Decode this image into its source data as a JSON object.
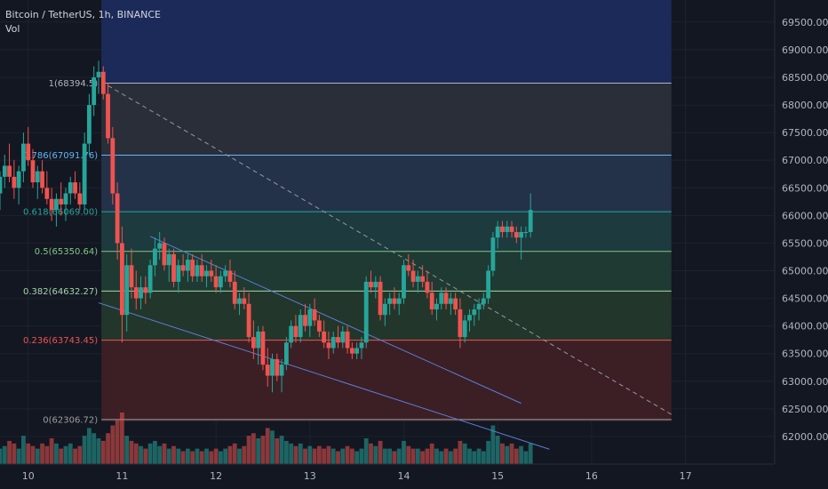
{
  "header": {
    "symbol": "Bitcoin / TetherUS, 1h, BINANCE",
    "indicator": "Vol"
  },
  "chart_data": {
    "type": "candlestick",
    "symbol": "Bitcoin / TetherUS",
    "interval": "1h",
    "exchange": "BINANCE",
    "price_axis": {
      "ylim": [
        61500,
        69900
      ],
      "ticks": [
        "69500.00",
        "69000.00",
        "68500.00",
        "68000.00",
        "67500.00",
        "67000.00",
        "66500.00",
        "66000.00",
        "65500.00",
        "65000.00",
        "64500.00",
        "64000.00",
        "63500.00",
        "63000.00",
        "62500.00",
        "62000.00"
      ]
    },
    "time_axis": {
      "xlim": [
        9.7,
        17.95
      ],
      "ticks": [
        {
          "x": 10,
          "label": "10"
        },
        {
          "x": 11,
          "label": "11"
        },
        {
          "x": 12,
          "label": "12"
        },
        {
          "x": 13,
          "label": "13"
        },
        {
          "x": 14,
          "label": "14"
        },
        {
          "x": 15,
          "label": "15"
        },
        {
          "x": 16,
          "label": "16"
        },
        {
          "x": 17,
          "label": "17"
        }
      ]
    },
    "fib_retracement": {
      "x_start": 10.78,
      "x_end": 16.85,
      "levels": [
        {
          "ratio": "1",
          "price": 68394.5,
          "label": "1(68394.5)",
          "color": "#b2b5be",
          "fill": "#2a2e39"
        },
        {
          "ratio": "0.786",
          "price": 67091.76,
          "label": "0.786(67091.76)",
          "color": "#64b5f6",
          "fill": "#243249"
        },
        {
          "ratio": "0.618",
          "price": 66069.0,
          "label": "0.618(66069.00)",
          "color": "#26a69a",
          "fill": "#1d3a3f"
        },
        {
          "ratio": "0.5",
          "price": 65350.64,
          "label": "0.5(65350.64)",
          "color": "#81c784",
          "fill": "#1f3a33"
        },
        {
          "ratio": "0.382",
          "price": 64632.27,
          "label": "0.382(64632.27)",
          "color": "#a5d6a7",
          "fill": "#23362b"
        },
        {
          "ratio": "0.236",
          "price": 63743.45,
          "label": "0.236(63743.45)",
          "color": "#ef5350",
          "fill": "#3b1f25"
        },
        {
          "ratio": "0",
          "price": 62306.72,
          "label": "0(62306.72)",
          "color": "#9e9e9e",
          "fill": "#3a2225"
        }
      ],
      "extended_top": {
        "price": 69900,
        "fill": "#1c2a5a"
      }
    },
    "trendlines": [
      {
        "style": "dashed",
        "color": "#9598a1",
        "points": [
          [
            10.85,
            68350
          ],
          [
            16.85,
            62400
          ]
        ]
      },
      {
        "style": "solid",
        "color": "#5b7fd6",
        "points": [
          [
            11.3,
            65620
          ],
          [
            15.25,
            62600
          ]
        ]
      },
      {
        "style": "solid",
        "color": "#5b7fd6",
        "points": [
          [
            10.75,
            64420
          ],
          [
            15.55,
            61770
          ]
        ]
      }
    ],
    "candles": [
      [
        9.7,
        66400,
        66800,
        66100,
        66700
      ],
      [
        9.75,
        66700,
        67100,
        66500,
        66900
      ],
      [
        9.8,
        66900,
        67300,
        66600,
        66700
      ],
      [
        9.85,
        66700,
        67000,
        66300,
        66500
      ],
      [
        9.9,
        66500,
        66900,
        66200,
        66800
      ],
      [
        9.95,
        66800,
        67500,
        66600,
        67300
      ],
      [
        10.0,
        67300,
        67600,
        66900,
        67000
      ],
      [
        10.05,
        67000,
        67200,
        66500,
        66600
      ],
      [
        10.1,
        66600,
        66900,
        66300,
        66800
      ],
      [
        10.15,
        66800,
        67000,
        66400,
        66500
      ],
      [
        10.2,
        66500,
        66800,
        66200,
        66300
      ],
      [
        10.25,
        66300,
        66500,
        65900,
        66100
      ],
      [
        10.3,
        66100,
        66400,
        65800,
        66300
      ],
      [
        10.35,
        66300,
        66600,
        66000,
        66200
      ],
      [
        10.4,
        66200,
        66500,
        65900,
        66400
      ],
      [
        10.45,
        66400,
        66700,
        66200,
        66600
      ],
      [
        10.5,
        66600,
        66800,
        66300,
        66400
      ],
      [
        10.55,
        66400,
        66600,
        66100,
        66200
      ],
      [
        10.6,
        66200,
        67500,
        66100,
        67300
      ],
      [
        10.65,
        67300,
        68200,
        67100,
        68000
      ],
      [
        10.7,
        68000,
        68700,
        67800,
        68500
      ],
      [
        10.75,
        68500,
        68800,
        68200,
        68600
      ],
      [
        10.8,
        68600,
        68700,
        68100,
        68200
      ],
      [
        10.85,
        68200,
        68400,
        67300,
        67400
      ],
      [
        10.9,
        67400,
        67600,
        66200,
        66400
      ],
      [
        10.95,
        66400,
        66600,
        65200,
        65500
      ],
      [
        11.0,
        65500,
        65800,
        63700,
        64200
      ],
      [
        11.05,
        64200,
        65300,
        63900,
        65100
      ],
      [
        11.1,
        65100,
        65400,
        64500,
        64700
      ],
      [
        11.15,
        64700,
        65000,
        64300,
        64500
      ],
      [
        11.2,
        64500,
        64900,
        64300,
        64700
      ],
      [
        11.25,
        64700,
        64900,
        64400,
        64600
      ],
      [
        11.3,
        64600,
        65200,
        64500,
        65100
      ],
      [
        11.35,
        65100,
        65600,
        64900,
        65400
      ],
      [
        11.4,
        65400,
        65700,
        65200,
        65500
      ],
      [
        11.45,
        65500,
        65600,
        65000,
        65100
      ],
      [
        11.5,
        65100,
        65400,
        64800,
        65300
      ],
      [
        11.55,
        65300,
        65400,
        64700,
        64800
      ],
      [
        11.6,
        64800,
        65200,
        64600,
        65100
      ],
      [
        11.65,
        65100,
        65300,
        64900,
        65000
      ],
      [
        11.7,
        65000,
        65300,
        64800,
        65200
      ],
      [
        11.75,
        65200,
        65300,
        64800,
        64900
      ],
      [
        11.8,
        64900,
        65200,
        64800,
        65100
      ],
      [
        11.85,
        65100,
        65300,
        64800,
        64900
      ],
      [
        11.9,
        64900,
        65100,
        64700,
        65000
      ],
      [
        11.95,
        65000,
        65200,
        64800,
        64900
      ],
      [
        12.0,
        64900,
        65100,
        64600,
        64700
      ],
      [
        12.05,
        64700,
        65000,
        64600,
        64900
      ],
      [
        12.1,
        64900,
        65100,
        64800,
        65000
      ],
      [
        12.15,
        65000,
        65200,
        64700,
        64800
      ],
      [
        12.2,
        64800,
        65000,
        64300,
        64400
      ],
      [
        12.25,
        64400,
        64600,
        64200,
        64500
      ],
      [
        12.3,
        64500,
        64700,
        64300,
        64400
      ],
      [
        12.35,
        64400,
        64600,
        63700,
        63800
      ],
      [
        12.4,
        63800,
        64100,
        63400,
        63600
      ],
      [
        12.45,
        63600,
        64000,
        63300,
        63900
      ],
      [
        12.5,
        63900,
        64000,
        63200,
        63300
      ],
      [
        12.55,
        63300,
        63600,
        62900,
        63100
      ],
      [
        12.6,
        63100,
        63500,
        62800,
        63400
      ],
      [
        12.65,
        63400,
        63500,
        63000,
        63100
      ],
      [
        12.7,
        63100,
        63400,
        62800,
        63300
      ],
      [
        12.75,
        63300,
        63800,
        63200,
        63700
      ],
      [
        12.8,
        63700,
        64100,
        63600,
        64000
      ],
      [
        12.85,
        64000,
        64200,
        63700,
        63800
      ],
      [
        12.9,
        63800,
        64300,
        63700,
        64200
      ],
      [
        12.95,
        64200,
        64400,
        63900,
        64000
      ],
      [
        13.0,
        64000,
        64400,
        63800,
        64300
      ],
      [
        13.05,
        64300,
        64500,
        64000,
        64100
      ],
      [
        13.1,
        64100,
        64200,
        63800,
        63900
      ],
      [
        13.15,
        63900,
        64100,
        63600,
        63700
      ],
      [
        13.2,
        63700,
        63900,
        63400,
        63600
      ],
      [
        13.25,
        63600,
        63900,
        63500,
        63800
      ],
      [
        13.3,
        63800,
        64000,
        63600,
        63700
      ],
      [
        13.35,
        63700,
        64000,
        63600,
        63900
      ],
      [
        13.4,
        63900,
        64000,
        63500,
        63600
      ],
      [
        13.45,
        63600,
        63700,
        63400,
        63500
      ],
      [
        13.5,
        63500,
        63700,
        63400,
        63600
      ],
      [
        13.55,
        63600,
        63800,
        63400,
        63700
      ],
      [
        13.6,
        63700,
        64900,
        63600,
        64800
      ],
      [
        13.65,
        64800,
        65000,
        64600,
        64700
      ],
      [
        13.7,
        64700,
        64900,
        64500,
        64800
      ],
      [
        13.75,
        64800,
        64900,
        64100,
        64200
      ],
      [
        13.8,
        64200,
        64500,
        64000,
        64400
      ],
      [
        13.85,
        64400,
        64600,
        64200,
        64500
      ],
      [
        13.9,
        64500,
        64700,
        64300,
        64400
      ],
      [
        13.95,
        64400,
        64600,
        64200,
        64500
      ],
      [
        14.0,
        64500,
        65200,
        64400,
        65100
      ],
      [
        14.05,
        65100,
        65300,
        64900,
        65000
      ],
      [
        14.1,
        65000,
        65200,
        64700,
        64800
      ],
      [
        14.15,
        64800,
        65000,
        64600,
        64900
      ],
      [
        14.2,
        64900,
        65100,
        64700,
        64800
      ],
      [
        14.25,
        64800,
        65000,
        64500,
        64600
      ],
      [
        14.3,
        64600,
        64800,
        64200,
        64300
      ],
      [
        14.35,
        64300,
        64500,
        64100,
        64400
      ],
      [
        14.4,
        64400,
        64700,
        64300,
        64600
      ],
      [
        14.45,
        64600,
        64700,
        64300,
        64400
      ],
      [
        14.5,
        64400,
        64600,
        64200,
        64500
      ],
      [
        14.55,
        64500,
        64600,
        64200,
        64300
      ],
      [
        14.6,
        64300,
        64500,
        63600,
        63800
      ],
      [
        14.65,
        63800,
        64200,
        63700,
        64100
      ],
      [
        14.7,
        64100,
        64300,
        63900,
        64200
      ],
      [
        14.75,
        64200,
        64400,
        64000,
        64300
      ],
      [
        14.8,
        64300,
        64500,
        64100,
        64400
      ],
      [
        14.85,
        64400,
        64600,
        64300,
        64500
      ],
      [
        14.9,
        64500,
        65100,
        64400,
        65000
      ],
      [
        14.95,
        65000,
        65700,
        64900,
        65600
      ],
      [
        15.0,
        65600,
        65900,
        65400,
        65800
      ],
      [
        15.05,
        65800,
        65900,
        65600,
        65700
      ],
      [
        15.1,
        65700,
        65900,
        65600,
        65800
      ],
      [
        15.15,
        65800,
        65900,
        65600,
        65700
      ],
      [
        15.2,
        65700,
        65800,
        65500,
        65600
      ],
      [
        15.25,
        65600,
        65800,
        65200,
        65700
      ],
      [
        15.3,
        65700,
        65800,
        65600,
        65700
      ],
      [
        15.35,
        65700,
        66400,
        65600,
        66100
      ]
    ],
    "volume": [
      [
        9.7,
        0.3
      ],
      [
        9.75,
        0.35
      ],
      [
        9.8,
        0.45
      ],
      [
        9.85,
        0.4
      ],
      [
        9.9,
        0.3
      ],
      [
        9.95,
        0.55
      ],
      [
        10.0,
        0.4
      ],
      [
        10.05,
        0.35
      ],
      [
        10.1,
        0.3
      ],
      [
        10.15,
        0.4
      ],
      [
        10.2,
        0.35
      ],
      [
        10.25,
        0.5
      ],
      [
        10.3,
        0.4
      ],
      [
        10.35,
        0.3
      ],
      [
        10.4,
        0.35
      ],
      [
        10.45,
        0.4
      ],
      [
        10.5,
        0.3
      ],
      [
        10.55,
        0.35
      ],
      [
        10.6,
        0.55
      ],
      [
        10.65,
        0.7
      ],
      [
        10.7,
        0.6
      ],
      [
        10.75,
        0.5
      ],
      [
        10.8,
        0.45
      ],
      [
        10.85,
        0.6
      ],
      [
        10.9,
        0.75
      ],
      [
        10.95,
        0.85
      ],
      [
        11.0,
        1.0
      ],
      [
        11.05,
        0.55
      ],
      [
        11.1,
        0.45
      ],
      [
        11.15,
        0.4
      ],
      [
        11.2,
        0.35
      ],
      [
        11.25,
        0.3
      ],
      [
        11.3,
        0.4
      ],
      [
        11.35,
        0.45
      ],
      [
        11.4,
        0.35
      ],
      [
        11.45,
        0.4
      ],
      [
        11.5,
        0.3
      ],
      [
        11.55,
        0.35
      ],
      [
        11.6,
        0.3
      ],
      [
        11.65,
        0.25
      ],
      [
        11.7,
        0.3
      ],
      [
        11.75,
        0.25
      ],
      [
        11.8,
        0.3
      ],
      [
        11.85,
        0.25
      ],
      [
        11.9,
        0.3
      ],
      [
        11.95,
        0.25
      ],
      [
        12.0,
        0.3
      ],
      [
        12.05,
        0.25
      ],
      [
        12.1,
        0.3
      ],
      [
        12.15,
        0.35
      ],
      [
        12.2,
        0.4
      ],
      [
        12.25,
        0.3
      ],
      [
        12.3,
        0.35
      ],
      [
        12.35,
        0.55
      ],
      [
        12.4,
        0.6
      ],
      [
        12.45,
        0.5
      ],
      [
        12.5,
        0.55
      ],
      [
        12.55,
        0.7
      ],
      [
        12.6,
        0.65
      ],
      [
        12.65,
        0.5
      ],
      [
        12.7,
        0.55
      ],
      [
        12.75,
        0.45
      ],
      [
        12.8,
        0.4
      ],
      [
        12.85,
        0.35
      ],
      [
        12.9,
        0.4
      ],
      [
        12.95,
        0.3
      ],
      [
        13.0,
        0.35
      ],
      [
        13.05,
        0.3
      ],
      [
        13.1,
        0.35
      ],
      [
        13.15,
        0.3
      ],
      [
        13.2,
        0.35
      ],
      [
        13.25,
        0.3
      ],
      [
        13.3,
        0.25
      ],
      [
        13.35,
        0.3
      ],
      [
        13.4,
        0.35
      ],
      [
        13.45,
        0.3
      ],
      [
        13.5,
        0.25
      ],
      [
        13.55,
        0.3
      ],
      [
        13.6,
        0.5
      ],
      [
        13.65,
        0.4
      ],
      [
        13.7,
        0.35
      ],
      [
        13.75,
        0.45
      ],
      [
        13.8,
        0.3
      ],
      [
        13.85,
        0.3
      ],
      [
        13.9,
        0.25
      ],
      [
        13.95,
        0.3
      ],
      [
        14.0,
        0.45
      ],
      [
        14.05,
        0.35
      ],
      [
        14.1,
        0.3
      ],
      [
        14.15,
        0.3
      ],
      [
        14.2,
        0.25
      ],
      [
        14.25,
        0.3
      ],
      [
        14.3,
        0.4
      ],
      [
        14.35,
        0.3
      ],
      [
        14.4,
        0.25
      ],
      [
        14.45,
        0.3
      ],
      [
        14.5,
        0.25
      ],
      [
        14.55,
        0.3
      ],
      [
        14.6,
        0.45
      ],
      [
        14.65,
        0.4
      ],
      [
        14.7,
        0.3
      ],
      [
        14.75,
        0.25
      ],
      [
        14.8,
        0.3
      ],
      [
        14.85,
        0.25
      ],
      [
        14.9,
        0.45
      ],
      [
        14.95,
        0.75
      ],
      [
        15.0,
        0.55
      ],
      [
        15.05,
        0.4
      ],
      [
        15.1,
        0.35
      ],
      [
        15.15,
        0.4
      ],
      [
        15.2,
        0.3
      ],
      [
        15.25,
        0.35
      ],
      [
        15.3,
        0.25
      ],
      [
        15.35,
        0.4
      ]
    ],
    "colors": {
      "up": "#26a69a",
      "down": "#ef5350",
      "background": "#131722",
      "grid": "#1e222d",
      "text": "#d1d4dc",
      "axis_text": "#b2b5be"
    }
  }
}
